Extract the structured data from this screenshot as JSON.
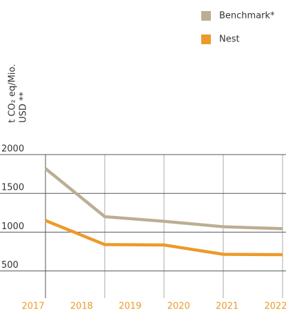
{
  "chart_data": {
    "type": "line",
    "y_label": [
      "t CO₂ eq/Mio.",
      "USD **"
    ],
    "categories": [
      "2017",
      "2018",
      "2019",
      "2020",
      "2021",
      "2022"
    ],
    "series": [
      {
        "name": "Benchmark*",
        "color": "#bcae94",
        "values": [
          1820,
          1200,
          1140,
          1070,
          1045,
          null
        ]
      },
      {
        "name": "Nest",
        "color": "#ec9a2a",
        "values": [
          1150,
          840,
          835,
          715,
          710,
          null
        ]
      }
    ],
    "ylim": [
      150,
      2000
    ],
    "yticks": [
      500,
      1000,
      1500,
      2000
    ],
    "grid": true
  }
}
